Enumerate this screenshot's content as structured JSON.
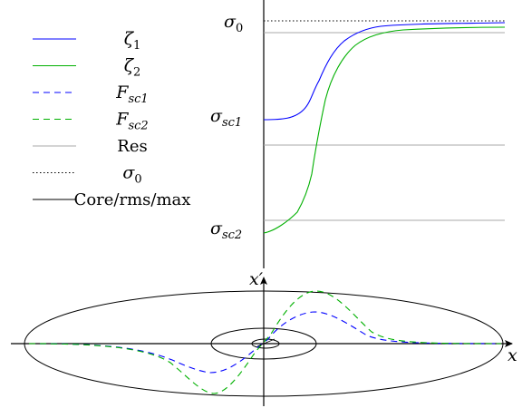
{
  "legend": {
    "entries": [
      {
        "base": "ζ",
        "sub": "1",
        "italic": true,
        "color": "#0000ff",
        "dash": "solid"
      },
      {
        "base": "ζ",
        "sub": "2",
        "italic": true,
        "color": "#00b000",
        "dash": "solid"
      },
      {
        "base": "F",
        "sub": "sc1",
        "italic": true,
        "color": "#0000ff",
        "dash": "dashed"
      },
      {
        "base": "F",
        "sub": "sc2",
        "italic": true,
        "color": "#00b000",
        "dash": "dashed"
      },
      {
        "base": "Res",
        "sub": "",
        "italic": false,
        "color": "#aaaaaa",
        "dash": "solid"
      },
      {
        "base": "σ",
        "sub": "0",
        "italic": true,
        "color": "#000000",
        "dash": "dotted"
      },
      {
        "base": "Core/rms/max",
        "sub": "",
        "italic": false,
        "color": "#000000",
        "dash": "solid"
      }
    ]
  },
  "axis_labels": {
    "sigma0": {
      "base": "σ",
      "sub": "0"
    },
    "sigma_sc1": {
      "base": "σ",
      "sub": "sc1"
    },
    "sigma_sc2": {
      "base": "σ",
      "sub": "sc2"
    },
    "x_prime": "x′",
    "x": "x"
  },
  "colors": {
    "blue": "#0000ff",
    "green": "#00b000",
    "grey": "#aaaaaa",
    "black": "#000000"
  }
}
